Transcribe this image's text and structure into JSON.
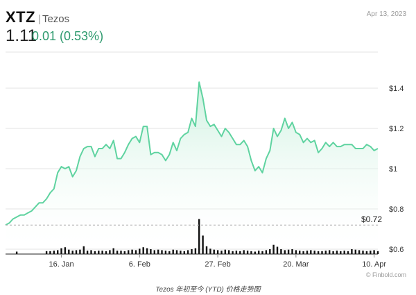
{
  "header": {
    "symbol": "XTZ",
    "separator": "|",
    "name": "Tezos",
    "price": "1.11",
    "change": "0.01 (0.53%)",
    "date": "Apr 13, 2023"
  },
  "caption": "Tezos 年初至今 (YTD) 价格走势图",
  "source": "© Finbold.com",
  "colors": {
    "line": "#5fd3a0",
    "area_top": "#d6f4e6",
    "change": "#2e9a6e",
    "volume": "#111111"
  },
  "chart_data": {
    "type": "line",
    "series": [
      {
        "values": [
          0.72,
          0.73,
          0.75,
          0.76,
          0.77,
          0.77,
          0.78,
          0.79,
          0.81,
          0.83,
          0.83,
          0.85,
          0.88,
          0.9,
          0.98,
          1.01,
          1.0,
          1.01,
          0.96,
          0.99,
          1.06,
          1.1,
          1.11,
          1.11,
          1.06,
          1.1,
          1.1,
          1.12,
          1.1,
          1.14,
          1.05,
          1.05,
          1.08,
          1.12,
          1.15,
          1.16,
          1.13,
          1.21,
          1.21,
          1.07,
          1.08,
          1.08,
          1.07,
          1.04,
          1.07,
          1.13,
          1.09,
          1.15,
          1.17,
          1.18,
          1.25,
          1.21,
          1.43,
          1.35,
          1.24,
          1.21,
          1.22,
          1.19,
          1.16,
          1.2,
          1.18,
          1.15,
          1.12,
          1.12,
          1.14,
          1.11,
          1.04,
          0.99,
          1.01,
          0.98,
          1.05,
          1.09,
          1.2,
          1.16,
          1.19,
          1.25,
          1.2,
          1.23,
          1.18,
          1.17,
          1.13,
          1.15,
          1.13,
          1.14,
          1.08,
          1.1,
          1.13,
          1.11,
          1.13,
          1.11,
          1.11,
          1.12,
          1.12,
          1.12,
          1.1,
          1.1,
          1.1,
          1.12,
          1.11,
          1.09,
          1.1
        ]
      }
    ],
    "volume": [
      0,
      0,
      0,
      0.5,
      0,
      0,
      0,
      0,
      0,
      0,
      0,
      0.6,
      0.6,
      0.7,
      0.8,
      1.2,
      1.4,
      0.9,
      0.7,
      0.8,
      0.9,
      1.6,
      0.7,
      0.8,
      0.6,
      0.7,
      0.7,
      0.6,
      0.8,
      1.2,
      0.7,
      0.7,
      0.6,
      0.8,
      0.9,
      0.8,
      1.1,
      1.4,
      1.2,
      1.0,
      0.8,
      0.9,
      0.8,
      0.7,
      0.6,
      0.9,
      0.8,
      0.7,
      0.6,
      0.8,
      1.0,
      1.2,
      7.2,
      3.8,
      1.6,
      1.1,
      0.9,
      0.8,
      0.7,
      0.9,
      0.8,
      0.6,
      0.7,
      0.6,
      0.8,
      0.7,
      0.6,
      0.5,
      0.7,
      0.6,
      0.8,
      1.0,
      1.9,
      1.5,
      1.0,
      0.8,
      0.9,
      1.0,
      0.8,
      0.7,
      0.6,
      0.7,
      0.8,
      0.7,
      0.6,
      0.6,
      0.7,
      0.8,
      0.6,
      0.7,
      0.6,
      0.7,
      0.6,
      1.0,
      0.9,
      0.8,
      0.7,
      0.6,
      0.7,
      0.8,
      0.6
    ],
    "x_ticks": [
      {
        "label": "16. Jan",
        "i": 15
      },
      {
        "label": "6. Feb",
        "i": 36
      },
      {
        "label": "27. Feb",
        "i": 57
      },
      {
        "label": "20. Mar",
        "i": 78
      },
      {
        "label": "10. Apr",
        "i": 99
      }
    ],
    "y_ticks": [
      "$1.4",
      "$1.2",
      "$1",
      "$0.8",
      "$0.6"
    ],
    "y_tick_values": [
      1.4,
      1.2,
      1.0,
      0.8,
      0.6
    ],
    "ylim": [
      0.6,
      1.5
    ],
    "baseline": {
      "label": "$0.72",
      "value": 0.72
    },
    "grid": true
  }
}
